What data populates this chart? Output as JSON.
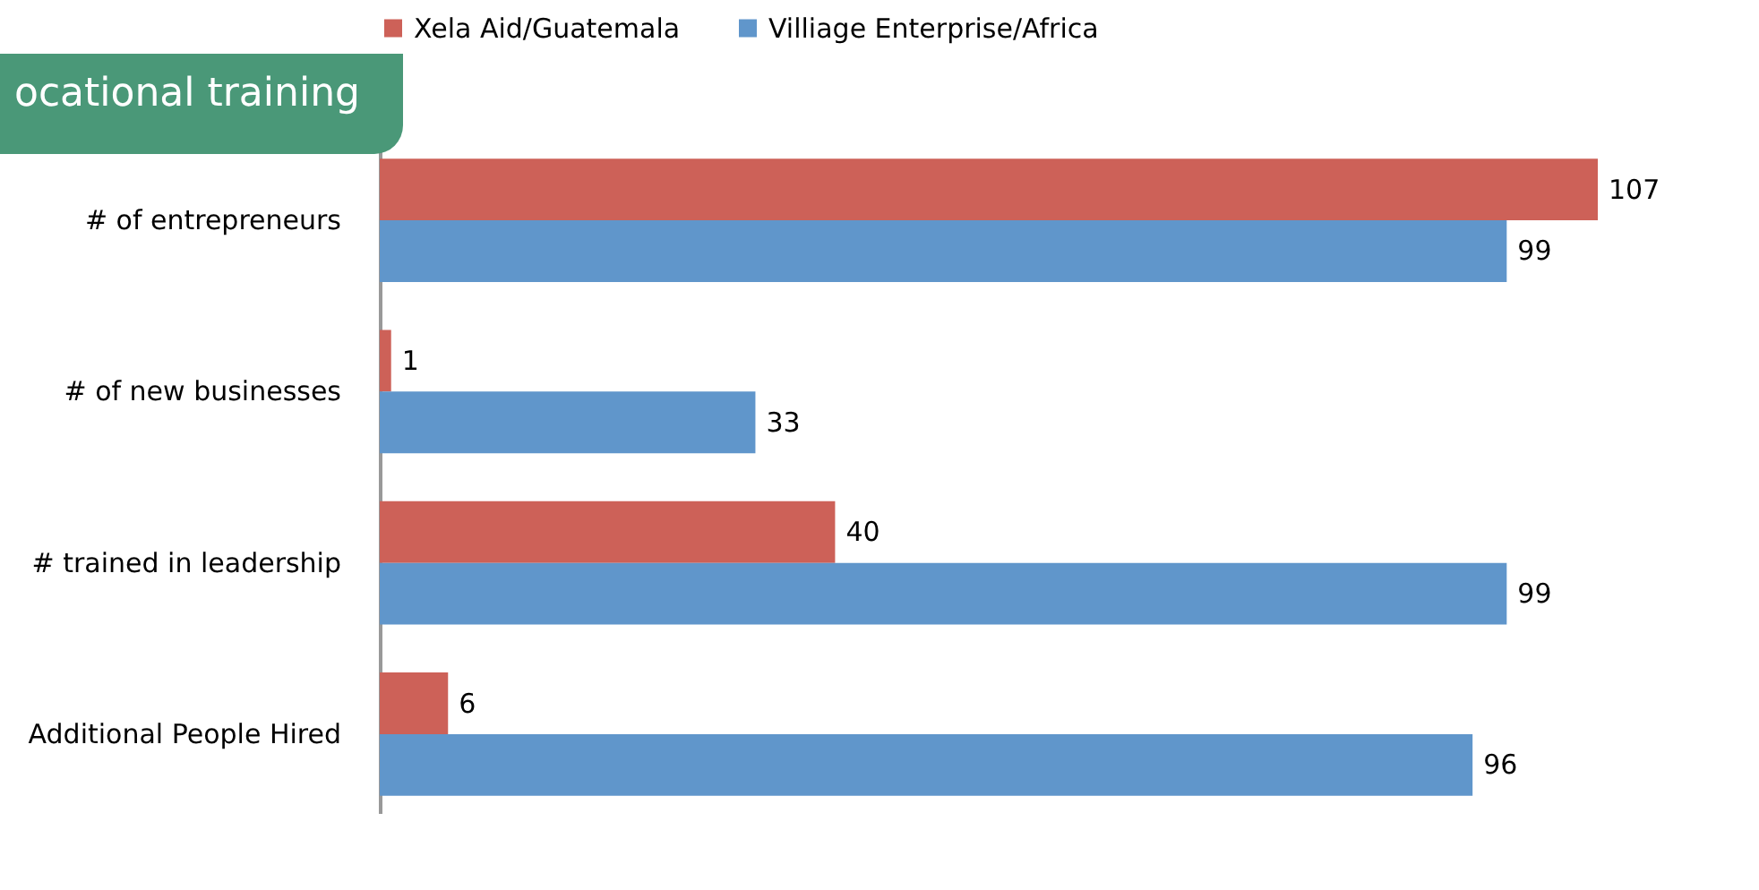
{
  "chart_data": {
    "type": "bar",
    "orientation": "horizontal",
    "title": "ocational training",
    "categories": [
      "# of entrepreneurs",
      "# of new businesses",
      "# trained in leadership",
      "Additional People Hired"
    ],
    "series": [
      {
        "name": "Xela Aid/Guatemala",
        "color": "#cd6158",
        "values": [
          107,
          1,
          40,
          6
        ]
      },
      {
        "name": "Villiage Enterprise/Africa",
        "color": "#6096cb",
        "values": [
          99,
          33,
          99,
          96
        ]
      }
    ],
    "data_labels": true,
    "legend": "top"
  }
}
